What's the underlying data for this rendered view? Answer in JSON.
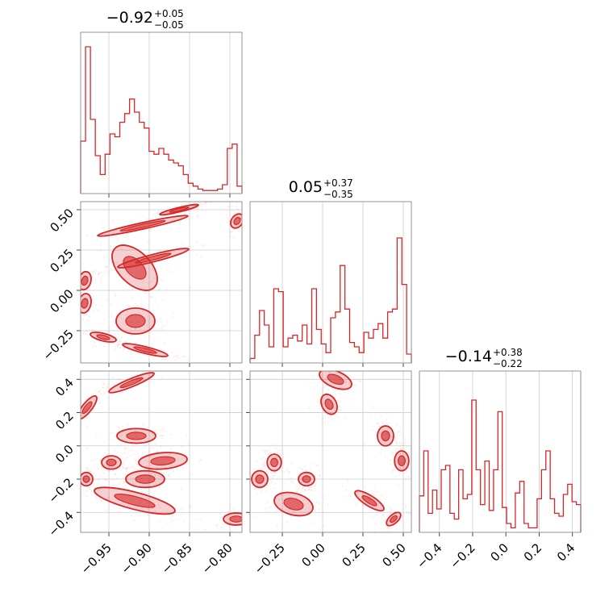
{
  "colors": {
    "series": "#d62728",
    "grid": "#cccccc",
    "frame": "#888888"
  },
  "chart_data": {
    "type": "corner",
    "parameters": [
      {
        "title": {
          "value": "−0.92",
          "plus": "+0.05",
          "minus": "−0.05"
        },
        "range": [
          -0.985,
          -0.785
        ],
        "ticks": [
          -0.95,
          -0.9,
          -0.85,
          -0.8
        ],
        "tick_labels": [
          "−0.95",
          "−0.90",
          "−0.85",
          "−0.80"
        ],
        "hist": [
          0.35,
          1.0,
          0.5,
          0.25,
          0.12,
          0.26,
          0.4,
          0.38,
          0.48,
          0.54,
          0.64,
          0.55,
          0.48,
          0.44,
          0.28,
          0.26,
          0.3,
          0.26,
          0.22,
          0.2,
          0.18,
          0.12,
          0.06,
          0.04,
          0.02,
          0.01,
          0.01,
          0.01,
          0.02,
          0.05,
          0.3,
          0.33,
          0.04
        ]
      },
      {
        "title": {
          "value": "0.05",
          "plus": "+0.37",
          "minus": "−0.35"
        },
        "range": [
          -0.45,
          0.55
        ],
        "ticks": [
          -0.25,
          0.0,
          0.25,
          0.5
        ],
        "tick_labels": [
          "−0.25",
          "0.00",
          "0.25",
          "0.50"
        ],
        "hist": [
          0.02,
          0.18,
          0.35,
          0.25,
          0.1,
          0.5,
          0.48,
          0.1,
          0.16,
          0.18,
          0.14,
          0.25,
          0.12,
          0.5,
          0.22,
          0.12,
          0.06,
          0.3,
          0.34,
          0.66,
          0.36,
          0.13,
          0.1,
          0.06,
          0.2,
          0.16,
          0.22,
          0.26,
          0.16,
          0.34,
          0.36,
          0.85,
          0.53,
          0.05
        ]
      },
      {
        "title": {
          "value": "−0.14",
          "plus": "+0.38",
          "minus": "−0.22"
        },
        "range": [
          -0.52,
          0.45
        ],
        "ticks": [
          -0.4,
          -0.2,
          0.0,
          0.2,
          0.4
        ],
        "tick_labels": [
          "−0.4",
          "−0.2",
          "0.0",
          "0.2",
          "0.4"
        ],
        "hist": [
          0.24,
          0.55,
          0.12,
          0.28,
          0.15,
          0.42,
          0.45,
          0.12,
          0.08,
          0.42,
          0.22,
          0.25,
          0.9,
          0.42,
          0.18,
          0.48,
          0.14,
          0.42,
          0.82,
          0.16,
          0.05,
          0.02,
          0.26,
          0.34,
          0.05,
          0.02,
          0.02,
          0.22,
          0.42,
          0.55,
          0.22,
          0.12,
          0.1,
          0.25,
          0.32,
          0.2,
          0.18
        ]
      }
    ],
    "pairs": [
      {
        "x": 0,
        "y": 1,
        "modes": [
          {
            "x": -0.98,
            "y": 0.06,
            "sx": 0.004,
            "sy": 0.028,
            "rho": 0.2
          },
          {
            "x": -0.98,
            "y": -0.08,
            "sx": 0.004,
            "sy": 0.03,
            "rho": 0.2
          },
          {
            "x": -0.957,
            "y": -0.29,
            "sx": 0.008,
            "sy": 0.015,
            "rho": -0.6
          },
          {
            "x": -0.918,
            "y": 0.14,
            "sx": 0.014,
            "sy": 0.07,
            "rho": -0.5
          },
          {
            "x": -0.917,
            "y": -0.19,
            "sx": 0.012,
            "sy": 0.04,
            "rho": 0.0
          },
          {
            "x": -0.908,
            "y": 0.4,
            "sx": 0.028,
            "sy": 0.032,
            "rho": 0.95
          },
          {
            "x": -0.895,
            "y": 0.2,
            "sx": 0.022,
            "sy": 0.03,
            "rho": 0.92
          },
          {
            "x": -0.863,
            "y": 0.5,
            "sx": 0.012,
            "sy": 0.016,
            "rho": 0.9
          },
          {
            "x": -0.905,
            "y": -0.37,
            "sx": 0.014,
            "sy": 0.02,
            "rho": -0.85
          },
          {
            "x": -0.791,
            "y": 0.43,
            "sx": 0.004,
            "sy": 0.022,
            "rho": 0.3
          }
        ]
      },
      {
        "x": 0,
        "y": 2,
        "modes": [
          {
            "x": -0.977,
            "y": 0.23,
            "sx": 0.006,
            "sy": 0.035,
            "rho": 0.8
          },
          {
            "x": -0.922,
            "y": 0.38,
            "sx": 0.014,
            "sy": 0.03,
            "rho": 0.9
          },
          {
            "x": -0.916,
            "y": 0.06,
            "sx": 0.012,
            "sy": 0.022,
            "rho": 0.0
          },
          {
            "x": -0.947,
            "y": -0.1,
            "sx": 0.006,
            "sy": 0.02,
            "rho": 0.0
          },
          {
            "x": -0.883,
            "y": -0.09,
            "sx": 0.015,
            "sy": 0.025,
            "rho": 0.2
          },
          {
            "x": -0.978,
            "y": -0.2,
            "sx": 0.004,
            "sy": 0.02,
            "rho": 0.0
          },
          {
            "x": -0.905,
            "y": -0.2,
            "sx": 0.012,
            "sy": 0.025,
            "rho": 0.0
          },
          {
            "x": -0.918,
            "y": -0.33,
            "sx": 0.025,
            "sy": 0.04,
            "rho": -0.75
          },
          {
            "x": -0.792,
            "y": -0.44,
            "sx": 0.008,
            "sy": 0.018,
            "rho": 0.0
          }
        ]
      },
      {
        "x": 1,
        "y": 2,
        "modes": [
          {
            "x": 0.08,
            "y": 0.4,
            "sx": 0.05,
            "sy": 0.03,
            "rho": -0.5
          },
          {
            "x": 0.04,
            "y": 0.25,
            "sx": 0.025,
            "sy": 0.03,
            "rho": -0.3
          },
          {
            "x": 0.39,
            "y": 0.06,
            "sx": 0.025,
            "sy": 0.03,
            "rho": 0.0
          },
          {
            "x": 0.49,
            "y": -0.09,
            "sx": 0.022,
            "sy": 0.03,
            "rho": 0.0
          },
          {
            "x": -0.3,
            "y": -0.1,
            "sx": 0.022,
            "sy": 0.025,
            "rho": 0.0
          },
          {
            "x": -0.39,
            "y": -0.2,
            "sx": 0.025,
            "sy": 0.025,
            "rho": 0.0
          },
          {
            "x": -0.1,
            "y": -0.2,
            "sx": 0.025,
            "sy": 0.02,
            "rho": 0.0
          },
          {
            "x": -0.18,
            "y": -0.35,
            "sx": 0.06,
            "sy": 0.035,
            "rho": -0.3
          },
          {
            "x": 0.29,
            "y": -0.33,
            "sx": 0.045,
            "sy": 0.03,
            "rho": -0.8
          },
          {
            "x": 0.44,
            "y": -0.44,
            "sx": 0.022,
            "sy": 0.02,
            "rho": 0.6
          }
        ]
      }
    ]
  }
}
